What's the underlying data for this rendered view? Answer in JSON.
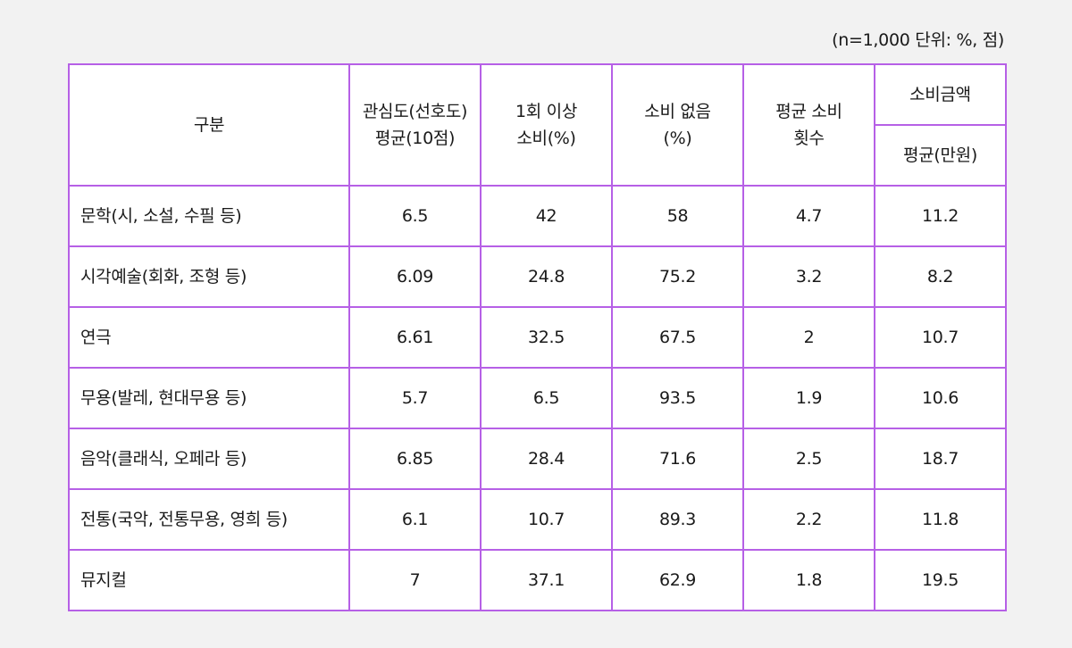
{
  "note": "(n=1,000   단위: %, 점)",
  "header": {
    "category": "구분",
    "interest_line1": "관심도(선호도)",
    "interest_line2": "평균(10점)",
    "once_line1": "1회 이상",
    "once_line2": "소비(%)",
    "none_line1": "소비 없음",
    "none_line2": "(%)",
    "avg_count_line1": "평균 소비",
    "avg_count_line2": "횟수",
    "amount_group": "소비금액",
    "amount_sub": "평균(만원)"
  },
  "rows": [
    {
      "label": "문학(시, 소설, 수필 등)",
      "interest": "6.5",
      "once": "42",
      "none": "58",
      "avg_count": "4.7",
      "amount": "11.2"
    },
    {
      "label": "시각예술(회화, 조형 등)",
      "interest": "6.09",
      "once": "24.8",
      "none": "75.2",
      "avg_count": "3.2",
      "amount": "8.2"
    },
    {
      "label": "연극",
      "interest": "6.61",
      "once": "32.5",
      "none": "67.5",
      "avg_count": "2",
      "amount": "10.7"
    },
    {
      "label": "무용(발레, 현대무용 등)",
      "interest": "5.7",
      "once": "6.5",
      "none": "93.5",
      "avg_count": "1.9",
      "amount": "10.6"
    },
    {
      "label": "음악(클래식, 오페라 등)",
      "interest": "6.85",
      "once": "28.4",
      "none": "71.6",
      "avg_count": "2.5",
      "amount": "18.7"
    },
    {
      "label": "전통(국악, 전통무용, 영희 등)",
      "interest": "6.1",
      "once": "10.7",
      "none": "89.3",
      "avg_count": "2.2",
      "amount": "11.8"
    },
    {
      "label": "뮤지컬",
      "interest": "7",
      "once": "37.1",
      "none": "62.9",
      "avg_count": "1.8",
      "amount": "19.5"
    }
  ]
}
